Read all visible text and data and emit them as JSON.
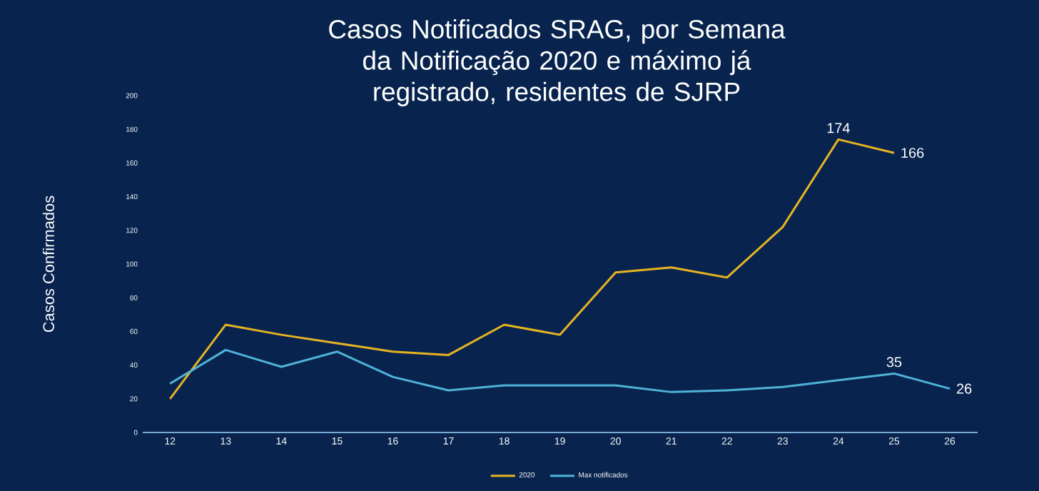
{
  "chart_data": {
    "type": "line",
    "title": "Casos Notificados SRAG, por Semana da Notificação 2020 e máximo já registrado, residentes de SJRP",
    "ylabel": "Casos Confirmados",
    "categories": [
      "12",
      "13",
      "14",
      "15",
      "16",
      "17",
      "18",
      "19",
      "20",
      "21",
      "22",
      "23",
      "24",
      "25",
      "26"
    ],
    "series": [
      {
        "name": "2020",
        "color": "#e6b422",
        "values": [
          20,
          64,
          58,
          53,
          48,
          46,
          64,
          58,
          95,
          98,
          92,
          122,
          174,
          166,
          null
        ],
        "value_labels": [
          null,
          null,
          null,
          null,
          null,
          null,
          null,
          null,
          null,
          null,
          null,
          null,
          "174",
          "166",
          null
        ]
      },
      {
        "name": "Max notificados",
        "color": "#4fb3d9",
        "values": [
          29,
          49,
          39,
          48,
          33,
          25,
          28,
          28,
          28,
          24,
          25,
          27,
          31,
          35,
          26
        ],
        "value_labels": [
          null,
          null,
          null,
          null,
          null,
          null,
          null,
          null,
          null,
          null,
          null,
          null,
          null,
          "35",
          "26"
        ]
      }
    ],
    "ylim": [
      0,
      200
    ],
    "yticks": [
      0,
      20,
      40,
      60,
      80,
      100,
      120,
      140,
      160,
      180,
      200
    ],
    "grid": false,
    "legend": "bottom",
    "marker": "none",
    "line_style": "solid"
  }
}
